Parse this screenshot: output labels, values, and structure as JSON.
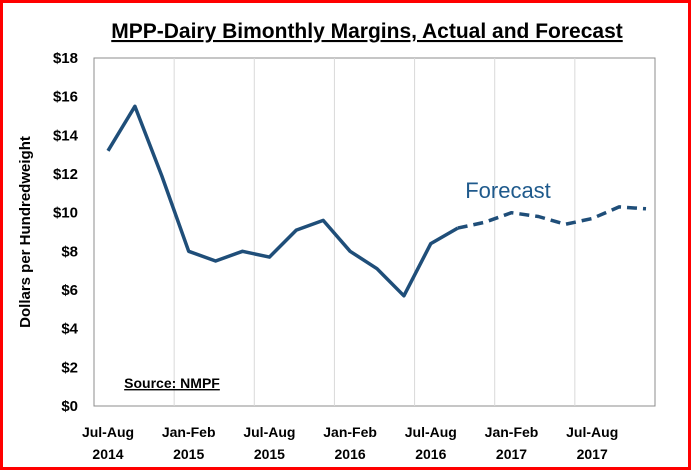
{
  "chart_data": {
    "type": "line",
    "title": "MPP-Dairy Bimonthly Margins, Actual and Forecast",
    "ylabel": "Dollars per Hundredweight",
    "xlabel": "",
    "ylim": [
      0,
      18
    ],
    "y_ticks": [
      "$0",
      "$2",
      "$4",
      "$6",
      "$8",
      "$10",
      "$12",
      "$14",
      "$16",
      "$18"
    ],
    "x_tick_labels": [
      {
        "line1": "Jul-Aug",
        "line2": "2014"
      },
      {
        "line1": "Jan-Feb",
        "line2": "2015"
      },
      {
        "line1": "Jul-Aug",
        "line2": "2015"
      },
      {
        "line1": "Jan-Feb",
        "line2": "2016"
      },
      {
        "line1": "Jul-Aug",
        "line2": "2016"
      },
      {
        "line1": "Jan-Feb",
        "line2": "2017"
      },
      {
        "line1": "Jul-Aug",
        "line2": "2017"
      }
    ],
    "grid": "vertical",
    "series": [
      {
        "style": "solid",
        "color": "#1f4e79",
        "x": [
          "Jul-Aug 2014",
          "Sep-Oct 2014",
          "Nov-Dec 2014",
          "Jan-Feb 2015",
          "Mar-Apr 2015",
          "May-Jun 2015",
          "Jul-Aug 2015",
          "Sep-Oct 2015",
          "Nov-Dec 2015",
          "Jan-Feb 2016",
          "Mar-Apr 2016",
          "May-Jun 2016",
          "Jul-Aug 2016",
          "Sep-Oct 2016"
        ],
        "values": [
          13.2,
          15.5,
          11.9,
          8.0,
          7.5,
          8.0,
          7.7,
          9.1,
          9.6,
          8.0,
          7.1,
          5.7,
          8.4,
          9.2
        ]
      },
      {
        "style": "dashed",
        "color": "#1f4e79",
        "x": [
          "Sep-Oct 2016",
          "Nov-Dec 2016",
          "Jan-Feb 2017",
          "Mar-Apr 2017",
          "May-Jun 2017",
          "Jul-Aug 2017",
          "Sep-Oct 2017",
          "Nov-Dec 2017"
        ],
        "values": [
          9.2,
          9.5,
          10.0,
          9.8,
          9.4,
          9.7,
          10.3,
          10.2
        ]
      }
    ],
    "annotations": {
      "forecast": "Forecast",
      "source": "Source: NMPF"
    }
  }
}
